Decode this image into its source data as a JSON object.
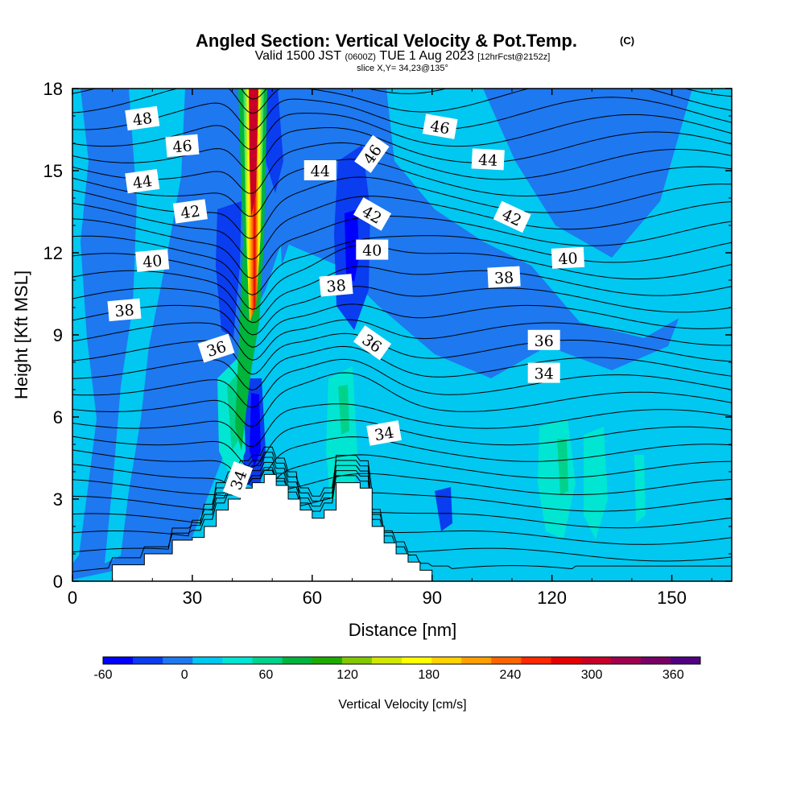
{
  "chart_data": {
    "type": "heatmap",
    "title": "Angled Section: Vertical Velocity & Pot.Temp.",
    "title_tag": "(C)",
    "subtitle_parts": [
      "Valid 1500 JST",
      "(0600Z)",
      "TUE 1 Aug 2023",
      "[12hrFcst@2152z]"
    ],
    "slice_info": "slice X,Y= 34,23@135°",
    "xlabel": "Distance [nm]",
    "ylabel": "Height [Kft MSL]",
    "xlim": [
      0,
      165
    ],
    "ylim": [
      0,
      18
    ],
    "x_ticks": [
      "0",
      "30",
      "60",
      "90",
      "120",
      "150"
    ],
    "y_ticks": [
      "0",
      "3",
      "6",
      "9",
      "12",
      "15",
      "18"
    ],
    "colorbar": {
      "label": "Vertical Velocity [cm/s]",
      "tick_labels": [
        "-60",
        "0",
        "60",
        "120",
        "180",
        "240",
        "300",
        "360"
      ],
      "colors": [
        "#0000ff",
        "#0a3cf0",
        "#1e78f0",
        "#00c8f0",
        "#00e6d2",
        "#00d28c",
        "#00b43c",
        "#1eaa00",
        "#82c800",
        "#d2e600",
        "#ffff00",
        "#ffd200",
        "#ffa000",
        "#ff6400",
        "#ff2800",
        "#e60000",
        "#c80028",
        "#a00050",
        "#780064",
        "#500082"
      ]
    },
    "contour_labels": [
      "48",
      "46",
      "44",
      "42",
      "40",
      "38",
      "36",
      "34",
      "46",
      "44",
      "42",
      "40",
      "38",
      "36",
      "34",
      "46",
      "44",
      "42",
      "40",
      "38",
      "36",
      "34"
    ],
    "terrain_profile": {
      "x": [
        0,
        10,
        15,
        18,
        20,
        25,
        30,
        33,
        36,
        39,
        42,
        45,
        48,
        51,
        54,
        57,
        60,
        63,
        66,
        69,
        72,
        75,
        78,
        81,
        84,
        87,
        90
      ],
      "height": [
        0,
        0.6,
        0.6,
        1.0,
        1.0,
        1.5,
        1.6,
        2.0,
        2.6,
        3.0,
        3.4,
        3.6,
        3.9,
        3.5,
        3.0,
        2.6,
        2.3,
        2.6,
        3.6,
        3.6,
        3.4,
        2.0,
        1.4,
        1.0,
        0.7,
        0.4,
        0.3
      ]
    }
  }
}
